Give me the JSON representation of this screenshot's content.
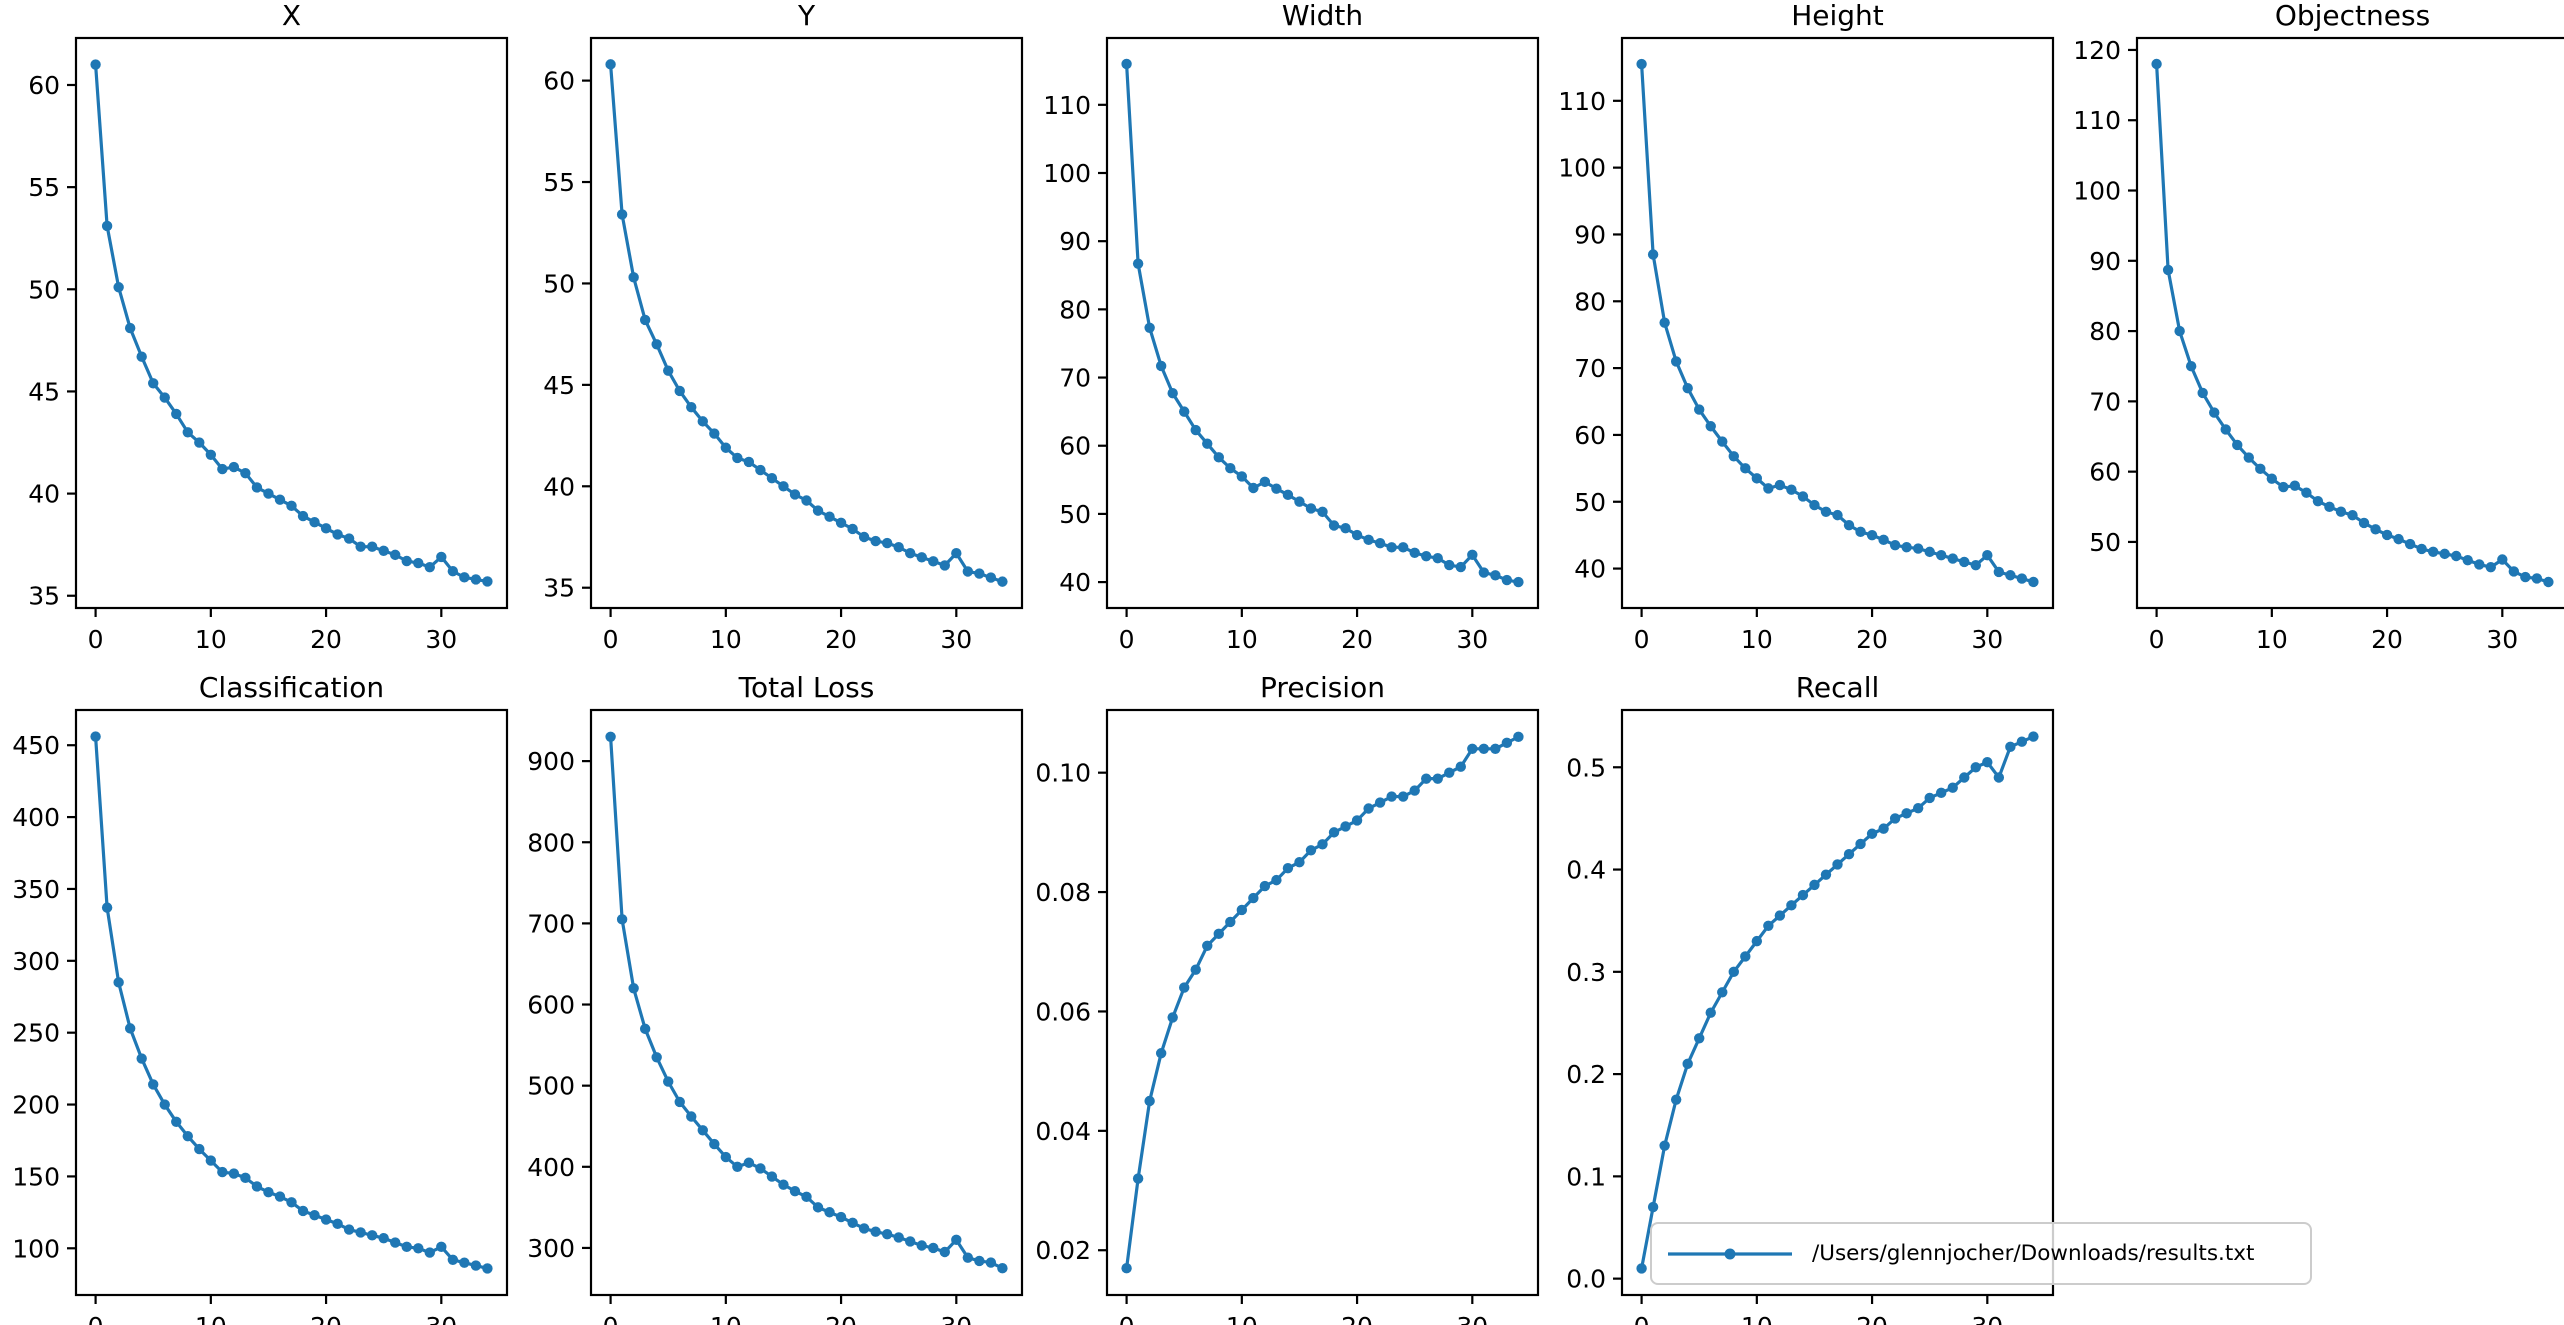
{
  "figure": {
    "background": "#ffffff",
    "line_color": "#1f77b4",
    "axis_color": "#000000",
    "x": [
      0,
      1,
      2,
      3,
      4,
      5,
      6,
      7,
      8,
      9,
      10,
      11,
      12,
      13,
      14,
      15,
      16,
      17,
      18,
      19,
      20,
      21,
      22,
      23,
      24,
      25,
      26,
      27,
      28,
      29,
      30,
      31,
      32,
      33,
      34
    ],
    "legend": {
      "label": "/Users/glennjocher/Downloads/results.txt",
      "marker": "circle",
      "position": "lower right of Recall subplot"
    }
  },
  "chart_data": [
    {
      "type": "line",
      "title": "X",
      "row": 0,
      "col": 0,
      "values": [
        61.0,
        53.1,
        50.1,
        48.1,
        46.7,
        45.4,
        44.7,
        43.9,
        43.0,
        42.5,
        41.9,
        41.2,
        41.3,
        41.0,
        40.3,
        40.0,
        39.7,
        39.4,
        38.9,
        38.6,
        38.3,
        38.0,
        37.8,
        37.4,
        37.4,
        37.2,
        37.0,
        36.7,
        36.6,
        36.4,
        36.9,
        36.2,
        35.9,
        35.8,
        35.7
      ],
      "xlim": [
        -1.7,
        35.7
      ],
      "ylim": [
        34.4,
        62.3
      ],
      "xticks": [
        0,
        10,
        20,
        30
      ],
      "xtick_labels": [
        "0",
        "10",
        "20",
        "30"
      ],
      "yticks": [
        35,
        40,
        45,
        50,
        55,
        60
      ],
      "ytick_labels": [
        "35",
        "40",
        "45",
        "50",
        "55",
        "60"
      ],
      "grid": false
    },
    {
      "type": "line",
      "title": "Y",
      "row": 0,
      "col": 1,
      "values": [
        60.8,
        53.4,
        50.3,
        48.2,
        47.0,
        45.7,
        44.7,
        43.9,
        43.2,
        42.6,
        41.9,
        41.4,
        41.2,
        40.8,
        40.4,
        40.0,
        39.6,
        39.3,
        38.8,
        38.5,
        38.2,
        37.9,
        37.5,
        37.3,
        37.2,
        37.0,
        36.7,
        36.5,
        36.3,
        36.1,
        36.7,
        35.8,
        35.7,
        35.5,
        35.3
      ],
      "xlim": [
        -1.7,
        35.7
      ],
      "ylim": [
        34.0,
        62.1
      ],
      "xticks": [
        0,
        10,
        20,
        30
      ],
      "xtick_labels": [
        "0",
        "10",
        "20",
        "30"
      ],
      "yticks": [
        35,
        40,
        45,
        50,
        55,
        60
      ],
      "ytick_labels": [
        "35",
        "40",
        "45",
        "50",
        "55",
        "60"
      ],
      "grid": false
    },
    {
      "type": "line",
      "title": "Width",
      "row": 0,
      "col": 2,
      "values": [
        116.0,
        86.7,
        77.3,
        71.7,
        67.7,
        65.0,
        62.3,
        60.3,
        58.3,
        56.7,
        55.5,
        53.8,
        54.7,
        53.7,
        52.8,
        51.8,
        50.8,
        50.3,
        48.3,
        47.9,
        46.9,
        46.2,
        45.7,
        45.1,
        45.1,
        44.3,
        43.8,
        43.5,
        42.5,
        42.2,
        44.0,
        41.4,
        41.0,
        40.3,
        40.0
      ],
      "xlim": [
        -1.7,
        35.7
      ],
      "ylim": [
        36.2,
        119.8
      ],
      "xticks": [
        0,
        10,
        20,
        30
      ],
      "xtick_labels": [
        "0",
        "10",
        "20",
        "30"
      ],
      "yticks": [
        40,
        50,
        60,
        70,
        80,
        90,
        100,
        110
      ],
      "ytick_labels": [
        "40",
        "50",
        "60",
        "70",
        "80",
        "90",
        "100",
        "110"
      ],
      "grid": false
    },
    {
      "type": "line",
      "title": "Height",
      "row": 0,
      "col": 3,
      "values": [
        115.5,
        87.0,
        76.8,
        71.0,
        67.0,
        63.8,
        61.3,
        59.0,
        56.8,
        55.0,
        53.5,
        52.0,
        52.5,
        51.8,
        50.8,
        49.5,
        48.5,
        48.0,
        46.5,
        45.5,
        45.0,
        44.3,
        43.5,
        43.2,
        43.0,
        42.5,
        42.0,
        41.5,
        41.0,
        40.5,
        42.0,
        39.5,
        39.0,
        38.5,
        38.0
      ],
      "xlim": [
        -1.7,
        35.7
      ],
      "ylim": [
        34.1,
        119.4
      ],
      "xticks": [
        0,
        10,
        20,
        30
      ],
      "xtick_labels": [
        "0",
        "10",
        "20",
        "30"
      ],
      "yticks": [
        40,
        50,
        60,
        70,
        80,
        90,
        100,
        110
      ],
      "ytick_labels": [
        "40",
        "50",
        "60",
        "70",
        "80",
        "90",
        "100",
        "110"
      ],
      "grid": false
    },
    {
      "type": "line",
      "title": "Objectness",
      "row": 0,
      "col": 4,
      "values": [
        118.0,
        88.7,
        80.0,
        75.0,
        71.2,
        68.4,
        66.0,
        63.8,
        62.0,
        60.4,
        59.0,
        57.8,
        58.0,
        57.0,
        55.8,
        55.0,
        54.3,
        53.8,
        52.7,
        51.8,
        51.0,
        50.4,
        49.7,
        49.0,
        48.6,
        48.3,
        48.0,
        47.4,
        46.8,
        46.4,
        47.5,
        45.8,
        45.0,
        44.8,
        44.3
      ],
      "xlim": [
        -1.7,
        35.7
      ],
      "ylim": [
        40.6,
        121.7
      ],
      "xticks": [
        0,
        10,
        20,
        30
      ],
      "xtick_labels": [
        "0",
        "10",
        "20",
        "30"
      ],
      "yticks": [
        50,
        60,
        70,
        80,
        90,
        100,
        110,
        120
      ],
      "ytick_labels": [
        "50",
        "60",
        "70",
        "80",
        "90",
        "100",
        "110",
        "120"
      ],
      "grid": false
    },
    {
      "type": "line",
      "title": "Classification",
      "row": 1,
      "col": 0,
      "values": [
        456,
        337,
        285,
        253,
        232,
        214,
        200,
        188,
        178,
        169,
        161,
        153,
        152,
        149,
        143,
        139,
        136,
        132,
        126,
        123,
        120,
        117,
        113,
        111,
        109,
        107,
        104,
        101,
        100,
        97,
        101,
        92,
        90,
        88,
        86
      ],
      "xlim": [
        -1.7,
        35.7
      ],
      "ylim": [
        67.5,
        474.5
      ],
      "xticks": [
        0,
        10,
        20,
        30
      ],
      "xtick_labels": [
        "0",
        "10",
        "20",
        "30"
      ],
      "yticks": [
        100,
        150,
        200,
        250,
        300,
        350,
        400,
        450
      ],
      "ytick_labels": [
        "100",
        "150",
        "200",
        "250",
        "300",
        "350",
        "400",
        "450"
      ],
      "grid": false
    },
    {
      "type": "line",
      "title": "Total Loss",
      "row": 1,
      "col": 1,
      "values": [
        930,
        705,
        620,
        570,
        535,
        505,
        480,
        462,
        445,
        428,
        412,
        400,
        405,
        398,
        388,
        378,
        370,
        363,
        350,
        344,
        338,
        331,
        324,
        320,
        317,
        313,
        308,
        303,
        300,
        295,
        310,
        288,
        284,
        282,
        275
      ],
      "xlim": [
        -1.7,
        35.7
      ],
      "ylim": [
        242,
        963
      ],
      "xticks": [
        0,
        10,
        20,
        30
      ],
      "xtick_labels": [
        "0",
        "10",
        "20",
        "30"
      ],
      "yticks": [
        300,
        400,
        500,
        600,
        700,
        800,
        900
      ],
      "ytick_labels": [
        "300",
        "400",
        "500",
        "600",
        "700",
        "800",
        "900"
      ],
      "grid": false
    },
    {
      "type": "line",
      "title": "Precision",
      "row": 1,
      "col": 2,
      "values": [
        0.017,
        0.032,
        0.045,
        0.053,
        0.059,
        0.064,
        0.067,
        0.071,
        0.073,
        0.075,
        0.077,
        0.079,
        0.081,
        0.082,
        0.084,
        0.085,
        0.087,
        0.088,
        0.09,
        0.091,
        0.092,
        0.094,
        0.095,
        0.096,
        0.096,
        0.097,
        0.099,
        0.099,
        0.1,
        0.101,
        0.104,
        0.104,
        0.104,
        0.105,
        0.106
      ],
      "xlim": [
        -1.7,
        35.7
      ],
      "ylim": [
        0.0125,
        0.1105
      ],
      "xticks": [
        0,
        10,
        20,
        30
      ],
      "xtick_labels": [
        "0",
        "10",
        "20",
        "30"
      ],
      "yticks": [
        0.02,
        0.04,
        0.06,
        0.08,
        0.1
      ],
      "ytick_labels": [
        "0.02",
        "0.04",
        "0.06",
        "0.08",
        "0.10"
      ],
      "grid": false
    },
    {
      "type": "line",
      "title": "Recall",
      "row": 1,
      "col": 3,
      "values": [
        0.01,
        0.07,
        0.13,
        0.175,
        0.21,
        0.235,
        0.26,
        0.28,
        0.3,
        0.315,
        0.33,
        0.345,
        0.355,
        0.365,
        0.375,
        0.385,
        0.395,
        0.405,
        0.415,
        0.425,
        0.435,
        0.44,
        0.45,
        0.455,
        0.46,
        0.47,
        0.475,
        0.48,
        0.49,
        0.5,
        0.505,
        0.49,
        0.52,
        0.525,
        0.53
      ],
      "xlim": [
        -1.7,
        35.7
      ],
      "ylim": [
        -0.016,
        0.556
      ],
      "xticks": [
        0,
        10,
        20,
        30
      ],
      "xtick_labels": [
        "0",
        "10",
        "20",
        "30"
      ],
      "yticks": [
        0.0,
        0.1,
        0.2,
        0.3,
        0.4,
        0.5
      ],
      "ytick_labels": [
        "0.0",
        "0.1",
        "0.2",
        "0.3",
        "0.4",
        "0.5"
      ],
      "grid": false
    }
  ]
}
